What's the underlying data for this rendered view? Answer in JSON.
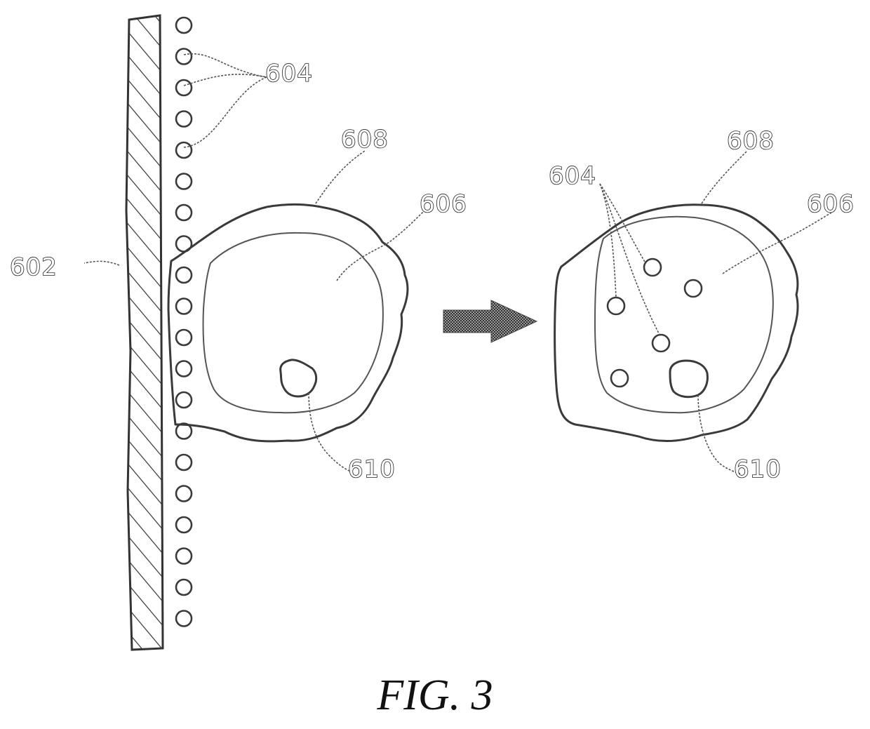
{
  "figure": {
    "caption": "FIG. 3",
    "labels": {
      "substrate": "602",
      "beads_left": "604",
      "beads_right": "604",
      "outer_left": "608",
      "inner_left": "606",
      "nucleus_left": "610",
      "outer_right": "608",
      "inner_right": "606",
      "nucleus_right": "610"
    }
  }
}
